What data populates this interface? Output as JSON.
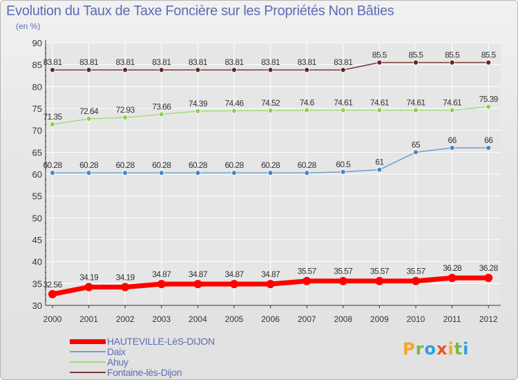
{
  "page": {
    "title": "Evolution du Taux de Taxe Foncière sur les Propriétés Non Bâties",
    "unit": "(en %)",
    "logo_text": "Proxiti"
  },
  "colors": {
    "title": "#5b6db3",
    "axis": "#333333",
    "tick_red": "#cc1c1c",
    "grid": "#ffffff"
  },
  "chart_data": {
    "type": "line",
    "title": "Evolution du Taux de Taxe Foncière sur les Propriétés Non Bâties",
    "ylabel": "(en %)",
    "xlabel": "",
    "categories": [
      "2000",
      "2001",
      "2002",
      "2003",
      "2004",
      "2005",
      "2006",
      "2007",
      "2008",
      "2009",
      "2010",
      "2011",
      "2012"
    ],
    "ylim": [
      30,
      90
    ],
    "yticks": [
      30,
      35,
      40,
      45,
      50,
      55,
      60,
      65,
      70,
      75,
      80,
      85,
      90
    ],
    "grid": true,
    "legend_position": "bottom-left",
    "series": [
      {
        "name": "HAUTEVILLE-LèS-DIJON",
        "color": "#ff0000",
        "marker_fill": "#ff0000",
        "line_width": 7,
        "marker_r": 6,
        "legend_thickness": 7,
        "values": [
          32.56,
          34.19,
          34.19,
          34.87,
          34.87,
          34.87,
          34.87,
          35.57,
          35.57,
          35.57,
          35.57,
          36.28,
          36.28
        ],
        "labels": [
          "32.56",
          "34.19",
          "34.19",
          "34.87",
          "34.87",
          "34.87",
          "34.87",
          "35.57",
          "35.57",
          "35.57",
          "35.57",
          "36.28",
          "36.28"
        ]
      },
      {
        "name": "Daix",
        "color": "#6b9fd0",
        "marker_fill": "#4a86c5",
        "line_width": 1.5,
        "marker_r": 3.5,
        "legend_thickness": 2,
        "values": [
          60.28,
          60.28,
          60.28,
          60.28,
          60.28,
          60.28,
          60.28,
          60.28,
          60.5,
          61,
          65,
          66,
          66
        ],
        "labels": [
          "60.28",
          "60.28",
          "60.28",
          "60.28",
          "60.28",
          "60.28",
          "60.28",
          "60.28",
          "60.5",
          "61",
          "65",
          "66",
          "66"
        ]
      },
      {
        "name": "Ahuy",
        "color": "#a8da7c",
        "marker_fill": "#8fd14f",
        "line_width": 1.5,
        "marker_r": 3.5,
        "legend_thickness": 2,
        "values": [
          71.35,
          72.64,
          72.93,
          73.66,
          74.39,
          74.46,
          74.52,
          74.6,
          74.61,
          74.61,
          74.61,
          74.61,
          75.39
        ],
        "labels": [
          "71.35",
          "72.64",
          "72.93",
          "73.66",
          "74.39",
          "74.46",
          "74.52",
          "74.6",
          "74.61",
          "74.61",
          "74.61",
          "74.61",
          "75.39"
        ]
      },
      {
        "name": "Fontaine-lès-Dijon",
        "color": "#7a3a3a",
        "marker_fill": "#6b2424",
        "line_width": 1.5,
        "marker_r": 3.5,
        "legend_thickness": 2,
        "values": [
          83.81,
          83.81,
          83.81,
          83.81,
          83.81,
          83.81,
          83.81,
          83.81,
          83.81,
          85.5,
          85.5,
          85.5,
          85.5
        ],
        "labels": [
          "83.81",
          "83.81",
          "83.81",
          "83.81",
          "83.81",
          "83.81",
          "83.81",
          "83.81",
          "83.81",
          "85.5",
          "85.5",
          "85.5",
          "85.5"
        ]
      }
    ]
  }
}
